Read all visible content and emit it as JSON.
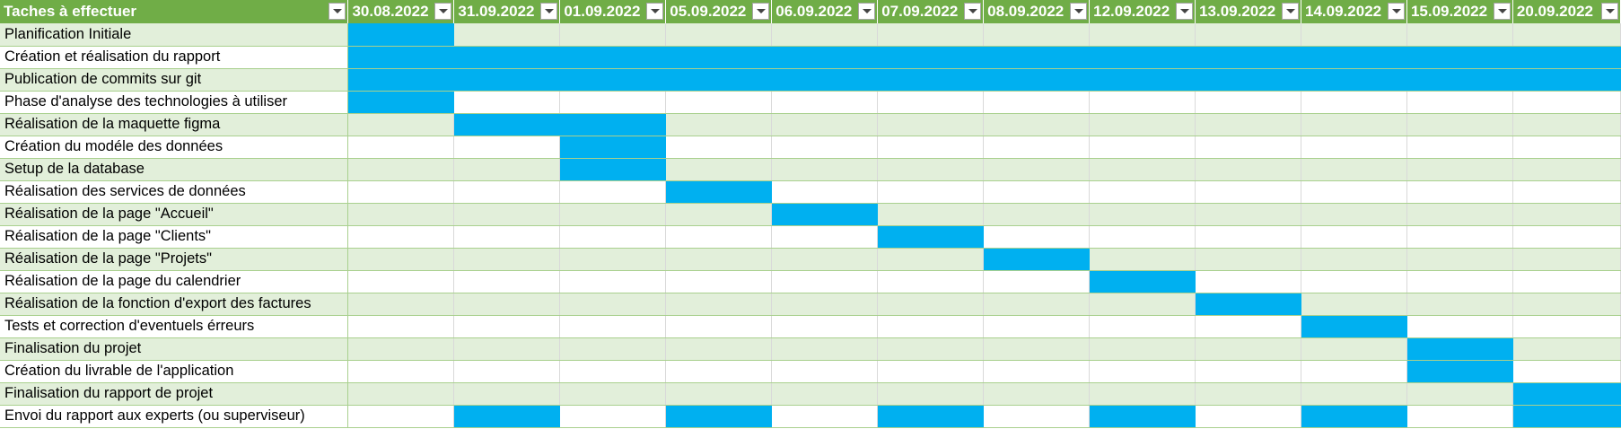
{
  "sheet": {
    "header_task": "Taches à effectuer",
    "dates": [
      "30.08.2022",
      "31.09.2022",
      "01.09.2022",
      "05.09.2022",
      "06.09.2022",
      "07.09.2022",
      "08.09.2022",
      "12.09.2022",
      "13.09.2022",
      "14.09.2022",
      "15.09.2022",
      "20.09.2022"
    ],
    "fill_color": "#00b0f0",
    "header_color": "#70ad47",
    "band_color": "#e2efda",
    "rows": [
      {
        "task": "Planification Initiale",
        "active": [
          1,
          0,
          0,
          0,
          0,
          0,
          0,
          0,
          0,
          0,
          0,
          0
        ]
      },
      {
        "task": "Création et réalisation du rapport",
        "active": [
          1,
          1,
          1,
          1,
          1,
          1,
          1,
          1,
          1,
          1,
          1,
          1
        ]
      },
      {
        "task": "Publication de commits sur git",
        "active": [
          1,
          1,
          1,
          1,
          1,
          1,
          1,
          1,
          1,
          1,
          1,
          1
        ]
      },
      {
        "task": "Phase d'analyse des technologies à utiliser",
        "active": [
          1,
          0,
          0,
          0,
          0,
          0,
          0,
          0,
          0,
          0,
          0,
          0
        ]
      },
      {
        "task": "Réalisation de la maquette figma",
        "active": [
          0,
          1,
          1,
          0,
          0,
          0,
          0,
          0,
          0,
          0,
          0,
          0
        ]
      },
      {
        "task": "Création du modéle des données",
        "active": [
          0,
          0,
          1,
          0,
          0,
          0,
          0,
          0,
          0,
          0,
          0,
          0
        ]
      },
      {
        "task": "Setup de la database",
        "active": [
          0,
          0,
          1,
          0,
          0,
          0,
          0,
          0,
          0,
          0,
          0,
          0
        ]
      },
      {
        "task": "Réalisation des services de données",
        "active": [
          0,
          0,
          0,
          1,
          0,
          0,
          0,
          0,
          0,
          0,
          0,
          0
        ]
      },
      {
        "task": "Réalisation de la page \"Accueil\"",
        "active": [
          0,
          0,
          0,
          0,
          1,
          0,
          0,
          0,
          0,
          0,
          0,
          0
        ]
      },
      {
        "task": "Réalisation de la page \"Clients\"",
        "active": [
          0,
          0,
          0,
          0,
          0,
          1,
          0,
          0,
          0,
          0,
          0,
          0
        ]
      },
      {
        "task": "Réalisation de la page \"Projets\"",
        "active": [
          0,
          0,
          0,
          0,
          0,
          0,
          1,
          0,
          0,
          0,
          0,
          0
        ]
      },
      {
        "task": "Réalisation de la page du calendrier",
        "active": [
          0,
          0,
          0,
          0,
          0,
          0,
          0,
          1,
          0,
          0,
          0,
          0
        ]
      },
      {
        "task": "Réalisation de la fonction d'export des factures",
        "active": [
          0,
          0,
          0,
          0,
          0,
          0,
          0,
          0,
          1,
          0,
          0,
          0
        ]
      },
      {
        "task": "Tests et correction d'eventuels érreurs",
        "active": [
          0,
          0,
          0,
          0,
          0,
          0,
          0,
          0,
          0,
          1,
          0,
          0
        ]
      },
      {
        "task": "Finalisation du projet",
        "active": [
          0,
          0,
          0,
          0,
          0,
          0,
          0,
          0,
          0,
          0,
          1,
          0
        ]
      },
      {
        "task": "Création du livrable de l'application",
        "active": [
          0,
          0,
          0,
          0,
          0,
          0,
          0,
          0,
          0,
          0,
          1,
          0
        ]
      },
      {
        "task": "Finalisation du rapport de projet",
        "active": [
          0,
          0,
          0,
          0,
          0,
          0,
          0,
          0,
          0,
          0,
          0,
          1
        ]
      },
      {
        "task": "Envoi du rapport aux experts (ou superviseur)",
        "active": [
          0,
          1,
          0,
          1,
          0,
          1,
          0,
          1,
          0,
          1,
          0,
          1
        ]
      }
    ]
  }
}
